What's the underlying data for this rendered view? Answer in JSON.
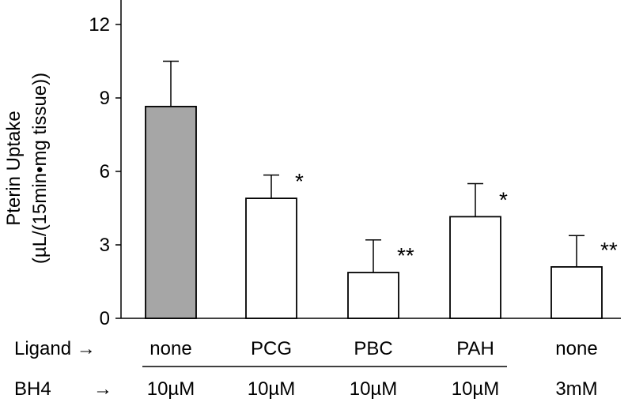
{
  "chart_data": {
    "type": "bar",
    "ylabel_line1": "Pterin Uptake",
    "ylabel_line2": "(µL/(15min•mg tissue))",
    "ylim": [
      0,
      12
    ],
    "yticks": [
      0,
      3,
      6,
      9,
      12
    ],
    "categories": [
      "none",
      "PCG",
      "PBC",
      "PAH",
      "none"
    ],
    "values": [
      8.65,
      4.9,
      1.87,
      4.15,
      2.1
    ],
    "errors": [
      1.85,
      0.95,
      1.33,
      1.35,
      1.28
    ],
    "significance": [
      "",
      "*",
      "**",
      "*",
      "**"
    ],
    "bh4": [
      "10µM",
      "10µM",
      "10µM",
      "10µM",
      "3mM"
    ],
    "row_labels": {
      "ligand": "Ligand →",
      "bh4_label": "BH4",
      "bh4_arrow": "→"
    },
    "bar_colors": [
      "#a6a6a6",
      "#ffffff",
      "#ffffff",
      "#ffffff",
      "#ffffff"
    ],
    "edge_color": "#000000",
    "grid": false,
    "legend": "none"
  }
}
